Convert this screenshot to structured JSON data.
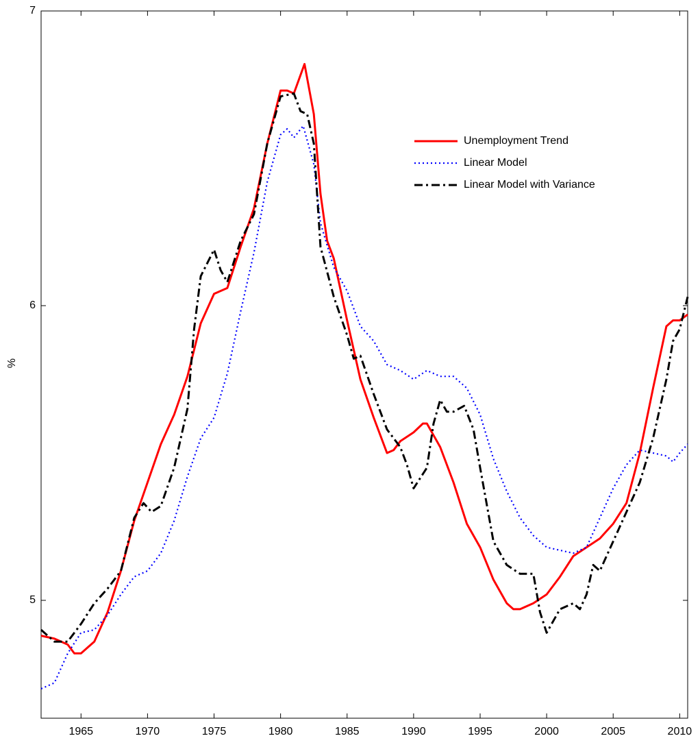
{
  "chart_data": {
    "type": "line",
    "y_label": "%",
    "xlim": [
      1962,
      2010.6
    ],
    "xticks": [
      1965,
      1970,
      1975,
      1980,
      1985,
      1990,
      1995,
      2000,
      2005,
      2010
    ],
    "ylim": [
      4.6,
      7
    ],
    "yticks": [
      5,
      6,
      7
    ],
    "grid": false,
    "legend": "upper right",
    "series": [
      {
        "name": "Unemployment Trend",
        "color": "#ff0000",
        "linestyle": "solid",
        "x": [
          1962,
          1963,
          1964,
          1964.5,
          1965,
          1966,
          1967,
          1968,
          1969,
          1970,
          1971,
          1972,
          1973,
          1974,
          1975,
          1976,
          1977,
          1978,
          1979,
          1980,
          1980.5,
          1981,
          1981.8,
          1982.5,
          1983,
          1983.5,
          1984,
          1985,
          1986,
          1987,
          1988,
          1988.5,
          1989,
          1990,
          1990.7,
          1991,
          1992,
          1993,
          1994,
          1995,
          1996,
          1997,
          1997.5,
          1998,
          1999,
          2000,
          2001,
          2002,
          2003,
          2004,
          2005,
          2006,
          2007,
          2008,
          2009,
          2009.5,
          2010,
          2010.6
        ],
        "values": [
          4.88,
          4.87,
          4.85,
          4.82,
          4.82,
          4.86,
          4.96,
          5.1,
          5.27,
          5.4,
          5.53,
          5.63,
          5.76,
          5.94,
          6.04,
          6.06,
          6.2,
          6.33,
          6.55,
          6.73,
          6.73,
          6.72,
          6.82,
          6.65,
          6.38,
          6.22,
          6.16,
          5.95,
          5.75,
          5.62,
          5.5,
          5.51,
          5.54,
          5.57,
          5.6,
          5.6,
          5.52,
          5.4,
          5.26,
          5.18,
          5.07,
          4.99,
          4.97,
          4.97,
          4.99,
          5.02,
          5.08,
          5.15,
          5.18,
          5.21,
          5.26,
          5.33,
          5.5,
          5.72,
          5.93,
          5.95,
          5.95,
          5.97
        ]
      },
      {
        "name": "Linear Model",
        "color": "#0000ff",
        "linestyle": "dotted",
        "x": [
          1962,
          1963,
          1964,
          1965,
          1966,
          1967,
          1968,
          1969,
          1970,
          1971,
          1972,
          1973,
          1974,
          1975,
          1976,
          1977,
          1978,
          1979,
          1980,
          1980.5,
          1981,
          1981.7,
          1982.5,
          1983,
          1984,
          1985,
          1986,
          1987,
          1988,
          1989,
          1990,
          1991,
          1992,
          1993,
          1994,
          1995,
          1996,
          1997,
          1998,
          1999,
          2000,
          2001,
          2002,
          2003,
          2004,
          2005,
          2006,
          2007,
          2008,
          2009,
          2009.5,
          2010,
          2010.6
        ],
        "values": [
          4.7,
          4.72,
          4.82,
          4.89,
          4.9,
          4.95,
          5.02,
          5.08,
          5.1,
          5.16,
          5.27,
          5.42,
          5.55,
          5.62,
          5.77,
          5.98,
          6.18,
          6.42,
          6.58,
          6.6,
          6.57,
          6.61,
          6.48,
          6.28,
          6.13,
          6.05,
          5.93,
          5.88,
          5.8,
          5.78,
          5.75,
          5.78,
          5.76,
          5.76,
          5.72,
          5.63,
          5.48,
          5.37,
          5.28,
          5.22,
          5.18,
          5.17,
          5.16,
          5.18,
          5.28,
          5.38,
          5.46,
          5.51,
          5.5,
          5.49,
          5.47,
          5.5,
          5.53
        ]
      },
      {
        "name": "Linear Model with Variance",
        "color": "#000000",
        "linestyle": "dashdot",
        "x": [
          1962,
          1963,
          1964,
          1965,
          1966,
          1967,
          1968,
          1969,
          1969.7,
          1970.3,
          1971,
          1972,
          1973,
          1973.5,
          1974,
          1975,
          1975.5,
          1976,
          1977,
          1978,
          1979,
          1980,
          1981,
          1981.5,
          1982,
          1982.5,
          1983,
          1984,
          1985,
          1985.5,
          1986,
          1987,
          1988,
          1989,
          1989.5,
          1990,
          1991,
          1991.5,
          1992,
          1992.5,
          1993,
          1993.8,
          1994.5,
          1995,
          1996,
          1997,
          1998,
          1999,
          1999.5,
          2000,
          2001,
          2002,
          2002.5,
          2003,
          2003.5,
          2004,
          2005,
          2006,
          2007,
          2008,
          2009,
          2009.5,
          2010,
          2010.6
        ],
        "values": [
          4.9,
          4.86,
          4.86,
          4.92,
          4.99,
          5.04,
          5.1,
          5.28,
          5.33,
          5.3,
          5.32,
          5.45,
          5.65,
          5.92,
          6.1,
          6.19,
          6.12,
          6.08,
          6.22,
          6.31,
          6.55,
          6.71,
          6.72,
          6.66,
          6.65,
          6.55,
          6.2,
          6.03,
          5.9,
          5.82,
          5.83,
          5.7,
          5.58,
          5.52,
          5.46,
          5.38,
          5.45,
          5.6,
          5.68,
          5.64,
          5.64,
          5.66,
          5.58,
          5.45,
          5.2,
          5.12,
          5.09,
          5.09,
          4.96,
          4.89,
          4.97,
          4.99,
          4.97,
          5.02,
          5.12,
          5.1,
          5.2,
          5.3,
          5.4,
          5.55,
          5.75,
          5.88,
          5.92,
          6.03
        ]
      }
    ]
  }
}
